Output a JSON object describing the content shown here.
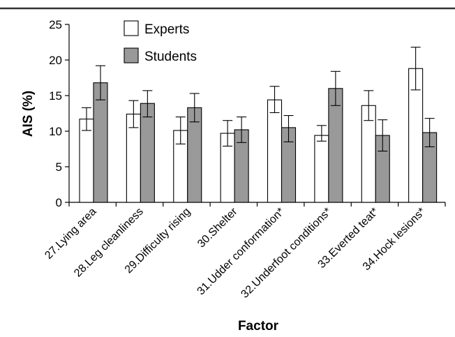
{
  "chart_data": {
    "type": "bar",
    "title": "",
    "xlabel": "Factor",
    "ylabel": "AIS (%)",
    "ylim": [
      0,
      25
    ],
    "yticks": [
      0,
      5,
      10,
      15,
      20,
      25
    ],
    "grid": false,
    "legend_position": "top-center",
    "categories": [
      "27.Lying area",
      "28.Leg cleanliness",
      "29.Difficulty rising",
      "30.Shelter",
      "31.Udder conformation*",
      "32.Underfoot conditions*",
      "33.Everted teat*",
      "34.Hock lesions*"
    ],
    "series": [
      {
        "name": "Experts",
        "color": "#ffffff",
        "values": [
          11.7,
          12.4,
          10.1,
          9.7,
          14.4,
          9.4,
          13.6,
          18.8
        ],
        "error_low": [
          10.1,
          10.5,
          8.2,
          7.9,
          12.6,
          8.6,
          11.5,
          15.8
        ],
        "error_high": [
          13.3,
          14.3,
          12.0,
          11.5,
          16.3,
          10.8,
          15.7,
          21.8
        ]
      },
      {
        "name": "Students",
        "color": "#999999",
        "values": [
          16.8,
          13.9,
          13.3,
          10.2,
          10.5,
          16.0,
          9.4,
          9.8
        ],
        "error_low": [
          14.4,
          12.0,
          11.3,
          8.4,
          8.5,
          13.6,
          7.2,
          7.8
        ],
        "error_high": [
          19.2,
          15.7,
          15.3,
          12.0,
          12.2,
          18.4,
          11.6,
          11.8
        ]
      }
    ]
  }
}
